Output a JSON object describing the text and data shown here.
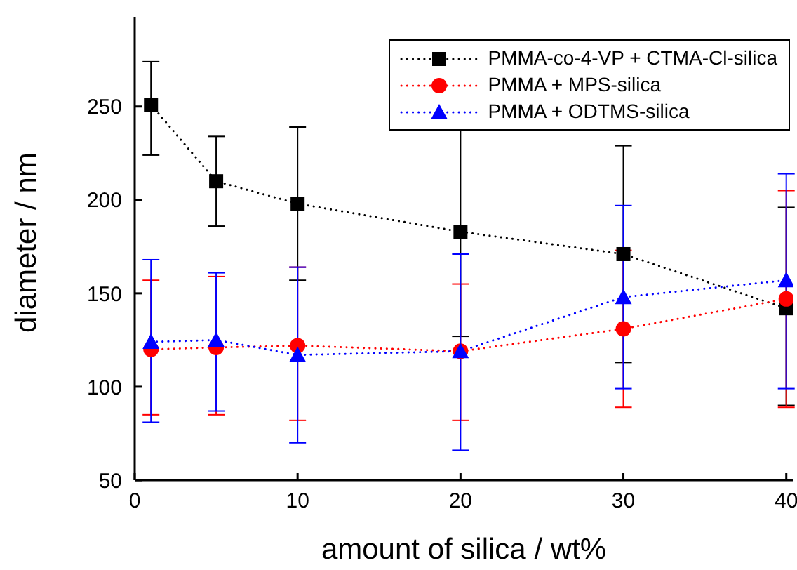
{
  "chart_data": {
    "type": "line",
    "xlabel": "amount of silica / wt%",
    "ylabel": "diameter / nm",
    "x": [
      1,
      5,
      10,
      20,
      30,
      40
    ],
    "series": [
      {
        "name": "PMMA-co-4-VP + CTMA-Cl-silica",
        "color": "#000000",
        "marker": "square",
        "values": [
          251,
          210,
          198,
          183,
          171,
          142
        ],
        "errors": [
          [
            224,
            274
          ],
          [
            186,
            234
          ],
          [
            157,
            239
          ],
          [
            127,
            239
          ],
          [
            113,
            229
          ],
          [
            90,
            196
          ]
        ]
      },
      {
        "name": "PMMA + MPS-silica",
        "color": "#ff0000",
        "marker": "circle",
        "values": [
          120,
          121,
          122,
          119,
          131,
          147
        ],
        "errors": [
          [
            85,
            157
          ],
          [
            85,
            159
          ],
          [
            82,
            164
          ],
          [
            82,
            155
          ],
          [
            89,
            173
          ],
          [
            89,
            205
          ]
        ]
      },
      {
        "name": "PMMA + ODTMS-silica",
        "color": "#0000ff",
        "marker": "triangle",
        "values": [
          124,
          125,
          117,
          119,
          148,
          157
        ],
        "errors": [
          [
            81,
            168
          ],
          [
            87,
            161
          ],
          [
            70,
            164
          ],
          [
            66,
            171
          ],
          [
            99,
            197
          ],
          [
            99,
            214
          ]
        ]
      }
    ],
    "xlim": [
      0,
      40.4
    ],
    "xticks": [
      0,
      10,
      20,
      30,
      40
    ],
    "ylim": [
      50,
      298
    ],
    "yticks": [
      50,
      100,
      150,
      200,
      250
    ],
    "grid": false,
    "legend": "top right",
    "line_style": "dotted"
  }
}
